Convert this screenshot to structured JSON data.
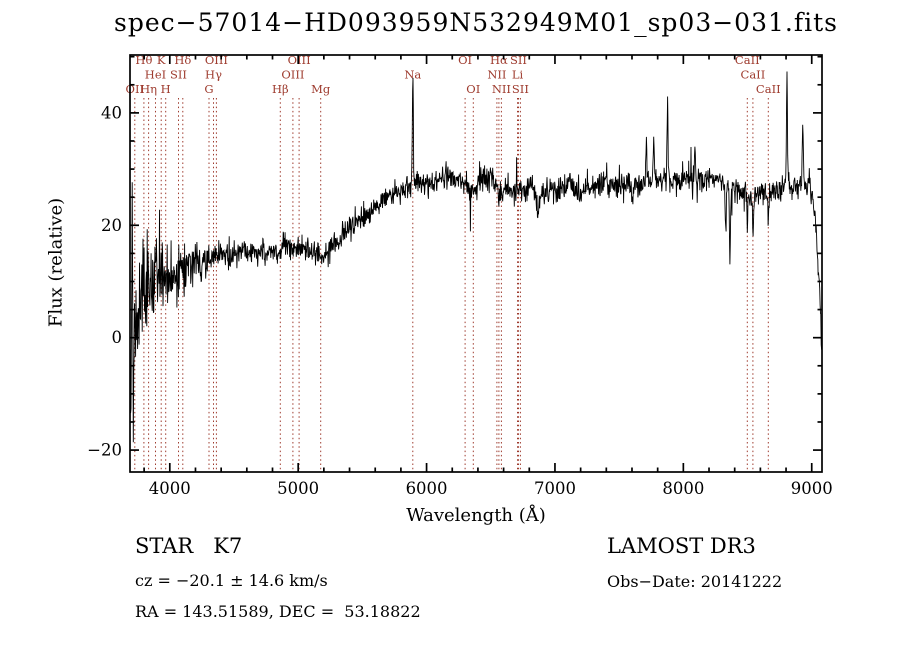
{
  "title": "spec−57014−HD093959N532949M01_sp03−031.fits",
  "annotations": {
    "classification": "STAR   K7",
    "survey": "LAMOST DR3",
    "cz": "cz = −20.1 ± 14.6 km/s",
    "obs_date": "Obs−Date: 20141222",
    "coords": "RA = 143.51589, DEC =  53.18822"
  },
  "chart_data": {
    "type": "line",
    "title": "spec−57014−HD093959N532949M01_sp03−031.fits",
    "xlabel": "Wavelength (Å)",
    "ylabel": "Flux (relative)",
    "xlim": [
      3690,
      9080
    ],
    "ylim": [
      -23.9,
      50.3
    ],
    "xticks": [
      4000,
      5000,
      6000,
      7000,
      8000,
      9000
    ],
    "xminor_step": 200,
    "yticks": [
      -20,
      0,
      20,
      40
    ],
    "yminor_step": 5,
    "grid": false,
    "legend": "none",
    "line_color": "#000000",
    "marker_color": "#9e3b2e",
    "axis_color": "#000000",
    "spectral_lines": [
      {
        "wl": 3727,
        "label": "OII",
        "row": 3
      },
      {
        "wl": 3798,
        "label": "Hθ",
        "row": 1
      },
      {
        "wl": 3835,
        "label": "Hη",
        "row": 3
      },
      {
        "wl": 3889,
        "label": "HeI",
        "row": 2
      },
      {
        "wl": 3933,
        "label": "K",
        "row": 1
      },
      {
        "wl": 3968,
        "label": "H",
        "row": 3
      },
      {
        "wl": 4068,
        "label": "SII",
        "row": 2
      },
      {
        "wl": 4101,
        "label": "Hδ",
        "row": 1
      },
      {
        "wl": 4305,
        "label": "G",
        "row": 3
      },
      {
        "wl": 4340,
        "label": "Hγ",
        "row": 2
      },
      {
        "wl": 4363,
        "label": "OIII",
        "row": 1
      },
      {
        "wl": 4861,
        "label": "Hβ",
        "row": 3
      },
      {
        "wl": 4959,
        "label": "OIII",
        "row": 2
      },
      {
        "wl": 5007,
        "label": "OIII",
        "row": 1
      },
      {
        "wl": 5175,
        "label": "Mg",
        "row": 3
      },
      {
        "wl": 5893,
        "label": "Na",
        "row": 2
      },
      {
        "wl": 6300,
        "label": "OI",
        "row": 1
      },
      {
        "wl": 6364,
        "label": "OI",
        "row": 3
      },
      {
        "wl": 6548,
        "label": "NII",
        "row": 2
      },
      {
        "wl": 6563,
        "label": "Hα",
        "row": 1
      },
      {
        "wl": 6583,
        "label": "NII",
        "row": 3
      },
      {
        "wl": 6708,
        "label": "Li",
        "row": 2
      },
      {
        "wl": 6716,
        "label": "SII",
        "row": 1
      },
      {
        "wl": 6731,
        "label": "SII",
        "row": 3
      },
      {
        "wl": 8498,
        "label": "CaII",
        "row": 1
      },
      {
        "wl": 8542,
        "label": "CaII",
        "row": 2
      },
      {
        "wl": 8662,
        "label": "CaII",
        "row": 3
      }
    ],
    "spectrum": {
      "seed": 57014,
      "sample_step": 3,
      "continuum": [
        [
          3690,
          3.5
        ],
        [
          3730,
          6
        ],
        [
          3780,
          8
        ],
        [
          3850,
          9.5
        ],
        [
          3920,
          10.5
        ],
        [
          4000,
          11
        ],
        [
          4080,
          11.5
        ],
        [
          4150,
          12.5
        ],
        [
          4230,
          13.5
        ],
        [
          4320,
          14.5
        ],
        [
          4400,
          15
        ],
        [
          4500,
          15
        ],
        [
          4600,
          15.5
        ],
        [
          4700,
          15
        ],
        [
          4800,
          15.5
        ],
        [
          4900,
          16
        ],
        [
          5000,
          16.5
        ],
        [
          5080,
          15.5
        ],
        [
          5170,
          14.5
        ],
        [
          5250,
          16
        ],
        [
          5350,
          18.5
        ],
        [
          5450,
          20.5
        ],
        [
          5550,
          22.5
        ],
        [
          5650,
          24.5
        ],
        [
          5750,
          26
        ],
        [
          5850,
          27
        ],
        [
          5950,
          27.5
        ],
        [
          6050,
          27
        ],
        [
          6120,
          28.5
        ],
        [
          6180,
          29
        ],
        [
          6250,
          28
        ],
        [
          6320,
          26.5
        ],
        [
          6380,
          26.5
        ],
        [
          6450,
          28.5
        ],
        [
          6520,
          28
        ],
        [
          6563,
          25.5
        ],
        [
          6620,
          26.5
        ],
        [
          6680,
          25.5
        ],
        [
          6760,
          26.5
        ],
        [
          6820,
          26.5
        ],
        [
          6880,
          25
        ],
        [
          6950,
          26
        ],
        [
          7050,
          26.5
        ],
        [
          7120,
          27.5
        ],
        [
          7180,
          25.5
        ],
        [
          7260,
          27
        ],
        [
          7360,
          27.5
        ],
        [
          7460,
          27
        ],
        [
          7560,
          27
        ],
        [
          7660,
          27.5
        ],
        [
          7760,
          28
        ],
        [
          7860,
          28
        ],
        [
          7960,
          28
        ],
        [
          8060,
          28.5
        ],
        [
          8160,
          28
        ],
        [
          8260,
          28.5
        ],
        [
          8360,
          26.5
        ],
        [
          8440,
          26.5
        ],
        [
          8520,
          24.5
        ],
        [
          8600,
          26
        ],
        [
          8680,
          25.5
        ],
        [
          8760,
          26.5
        ],
        [
          8840,
          27
        ],
        [
          8920,
          27.5
        ],
        [
          8990,
          26.5
        ],
        [
          9030,
          20
        ],
        [
          9060,
          8
        ],
        [
          9080,
          -3
        ]
      ],
      "features": [
        [
          3696,
          -24,
          3
        ],
        [
          3706,
          17,
          3
        ],
        [
          3716,
          -20,
          3
        ],
        [
          5893,
          19.5,
          4
        ],
        [
          6868,
          -3,
          8
        ],
        [
          7605,
          -3.5,
          7
        ],
        [
          7712,
          6,
          5
        ],
        [
          7770,
          7,
          5
        ],
        [
          7877,
          15,
          4
        ],
        [
          8090,
          6,
          4
        ],
        [
          8330,
          -8,
          4
        ],
        [
          8363,
          -14,
          4
        ],
        [
          8498,
          -5,
          4
        ],
        [
          8542,
          -6,
          4
        ],
        [
          8662,
          -5,
          4
        ],
        [
          8807,
          21,
          4
        ],
        [
          8930,
          12,
          4
        ]
      ],
      "noise": {
        "base": 1.1,
        "blue_amp": 7,
        "blue_scale": 240,
        "spike_prob": 0.015,
        "spike_mult": 2.8
      }
    }
  }
}
